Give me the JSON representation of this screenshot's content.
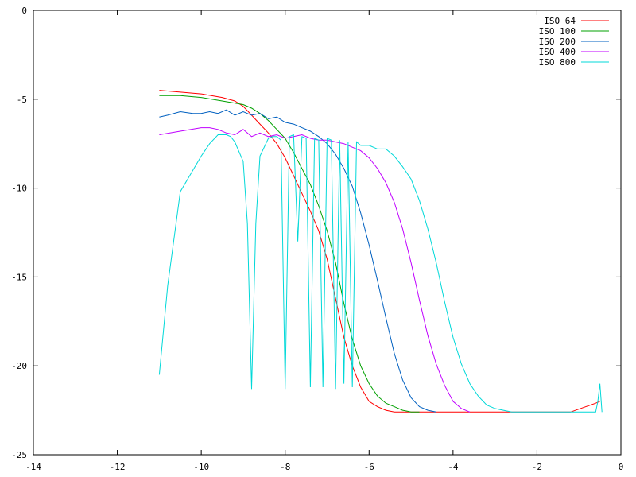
{
  "chart_data": {
    "type": "line",
    "title": "",
    "xlabel": "",
    "ylabel": "",
    "xlim": [
      -14,
      0
    ],
    "ylim": [
      -25,
      0
    ],
    "grid": false,
    "legend_position": "top-right",
    "x_ticks": [
      -14,
      -12,
      -10,
      -8,
      -6,
      -4,
      -2,
      0
    ],
    "y_ticks": [
      0,
      -5,
      -10,
      -15,
      -20,
      -25
    ],
    "x_tick_labels": [
      "-14",
      "-12",
      "-10",
      "-8",
      "-6",
      "-4",
      "-2",
      "0"
    ],
    "y_tick_labels": [
      "0",
      "-5",
      "-10",
      "-15",
      "-20",
      "-25"
    ],
    "series": [
      {
        "name": "ISO 64",
        "color": "#ff0000",
        "x": [
          -11.0,
          -10.5,
          -10.0,
          -9.5,
          -9.2,
          -9.0,
          -8.8,
          -8.6,
          -8.4,
          -8.2,
          -8.0,
          -7.8,
          -7.6,
          -7.4,
          -7.2,
          -7.0,
          -6.8,
          -6.6,
          -6.4,
          -6.2,
          -6.0,
          -5.8,
          -5.6,
          -5.4,
          -5.2,
          -5.0,
          -1.2,
          -0.6,
          -0.5
        ],
        "y": [
          -4.5,
          -4.6,
          -4.7,
          -4.9,
          -5.1,
          -5.4,
          -5.9,
          -6.4,
          -6.9,
          -7.5,
          -8.3,
          -9.3,
          -10.3,
          -11.3,
          -12.4,
          -14.0,
          -16.2,
          -18.4,
          -20.0,
          -21.2,
          -22.0,
          -22.3,
          -22.5,
          -22.6,
          -22.6,
          -22.6,
          -22.6,
          -22.1,
          -22.0
        ]
      },
      {
        "name": "ISO 100",
        "color": "#00a000",
        "x": [
          -11.0,
          -10.5,
          -10.0,
          -9.5,
          -9.0,
          -8.8,
          -8.6,
          -8.4,
          -8.2,
          -8.0,
          -7.8,
          -7.6,
          -7.4,
          -7.2,
          -7.0,
          -6.8,
          -6.6,
          -6.4,
          -6.2,
          -6.0,
          -5.8,
          -5.6,
          -5.4,
          -5.2,
          -5.0,
          -4.8
        ],
        "y": [
          -4.8,
          -4.8,
          -4.9,
          -5.1,
          -5.3,
          -5.5,
          -5.8,
          -6.2,
          -6.7,
          -7.2,
          -8.0,
          -8.9,
          -9.8,
          -11.0,
          -12.4,
          -14.2,
          -16.5,
          -18.5,
          -20.0,
          -21.0,
          -21.7,
          -22.1,
          -22.3,
          -22.5,
          -22.6,
          -22.6
        ]
      },
      {
        "name": "ISO 200",
        "color": "#0060c0",
        "x": [
          -11.0,
          -10.8,
          -10.5,
          -10.2,
          -10.0,
          -9.8,
          -9.6,
          -9.4,
          -9.2,
          -9.0,
          -8.8,
          -8.6,
          -8.4,
          -8.2,
          -8.0,
          -7.8,
          -7.6,
          -7.4,
          -7.2,
          -7.0,
          -6.8,
          -6.6,
          -6.4,
          -6.2,
          -6.0,
          -5.8,
          -5.6,
          -5.4,
          -5.2,
          -5.0,
          -4.8,
          -4.6,
          -4.4
        ],
        "y": [
          -6.0,
          -5.9,
          -5.7,
          -5.8,
          -5.8,
          -5.7,
          -5.8,
          -5.6,
          -5.9,
          -5.7,
          -5.9,
          -5.8,
          -6.1,
          -6.0,
          -6.3,
          -6.4,
          -6.6,
          -6.8,
          -7.1,
          -7.5,
          -8.1,
          -8.9,
          -9.9,
          -11.4,
          -13.2,
          -15.2,
          -17.3,
          -19.3,
          -20.8,
          -21.8,
          -22.3,
          -22.5,
          -22.6
        ]
      },
      {
        "name": "ISO 400",
        "color": "#c000ff",
        "x": [
          -11.0,
          -10.5,
          -10.0,
          -9.8,
          -9.6,
          -9.4,
          -9.2,
          -9.0,
          -8.8,
          -8.6,
          -8.4,
          -8.2,
          -8.0,
          -7.8,
          -7.6,
          -7.4,
          -7.2,
          -7.0,
          -6.8,
          -6.6,
          -6.4,
          -6.2,
          -6.0,
          -5.8,
          -5.6,
          -5.4,
          -5.2,
          -5.0,
          -4.8,
          -4.6,
          -4.4,
          -4.2,
          -4.0,
          -3.8,
          -3.6
        ],
        "y": [
          -7.0,
          -6.8,
          -6.6,
          -6.6,
          -6.7,
          -6.9,
          -7.0,
          -6.7,
          -7.1,
          -6.9,
          -7.1,
          -7.0,
          -7.2,
          -7.1,
          -7.0,
          -7.2,
          -7.3,
          -7.3,
          -7.4,
          -7.5,
          -7.7,
          -7.9,
          -8.3,
          -8.9,
          -9.7,
          -10.8,
          -12.3,
          -14.2,
          -16.3,
          -18.3,
          -19.9,
          -21.1,
          -22.0,
          -22.4,
          -22.6
        ]
      },
      {
        "name": "ISO 800",
        "color": "#00d8d8",
        "x": [
          -11.0,
          -10.8,
          -10.5,
          -10.2,
          -10.0,
          -9.8,
          -9.6,
          -9.4,
          -9.3,
          -9.2,
          -9.0,
          -8.9,
          -8.8,
          -8.7,
          -8.6,
          -8.4,
          -8.3,
          -8.2,
          -8.1,
          -8.0,
          -7.9,
          -7.8,
          -7.7,
          -7.6,
          -7.5,
          -7.4,
          -7.3,
          -7.2,
          -7.1,
          -7.0,
          -6.9,
          -6.8,
          -6.7,
          -6.6,
          -6.5,
          -6.4,
          -6.3,
          -6.2,
          -6.0,
          -5.8,
          -5.6,
          -5.4,
          -5.2,
          -5.0,
          -4.8,
          -4.6,
          -4.4,
          -4.2,
          -4.0,
          -3.8,
          -3.6,
          -3.4,
          -3.2,
          -3.0,
          -2.8,
          -2.6,
          -2.4,
          -2.2,
          -2.0,
          -1.8,
          -1.6,
          -1.4,
          -1.2,
          -1.0,
          -0.8,
          -0.6,
          -0.55,
          -0.5,
          -0.45
        ],
        "y": [
          -20.5,
          -15.5,
          -10.2,
          -9.0,
          -8.2,
          -7.5,
          -7.0,
          -7.0,
          -7.1,
          -7.4,
          -8.5,
          -12.0,
          -21.3,
          -12.0,
          -8.2,
          -7.2,
          -7.1,
          -7.1,
          -7.3,
          -21.3,
          -7.1,
          -7.0,
          -13.0,
          -7.1,
          -7.2,
          -21.2,
          -7.2,
          -7.3,
          -21.2,
          -7.2,
          -7.3,
          -21.3,
          -7.3,
          -21.0,
          -7.4,
          -21.2,
          -7.4,
          -7.6,
          -7.6,
          -7.8,
          -7.8,
          -8.2,
          -8.8,
          -9.5,
          -10.7,
          -12.3,
          -14.2,
          -16.4,
          -18.4,
          -19.9,
          -21.0,
          -21.7,
          -22.2,
          -22.4,
          -22.5,
          -22.6,
          -22.6,
          -22.6,
          -22.6,
          -22.6,
          -22.6,
          -22.6,
          -22.6,
          -22.6,
          -22.6,
          -22.6,
          -22.0,
          -21.0,
          -22.6
        ]
      }
    ]
  }
}
